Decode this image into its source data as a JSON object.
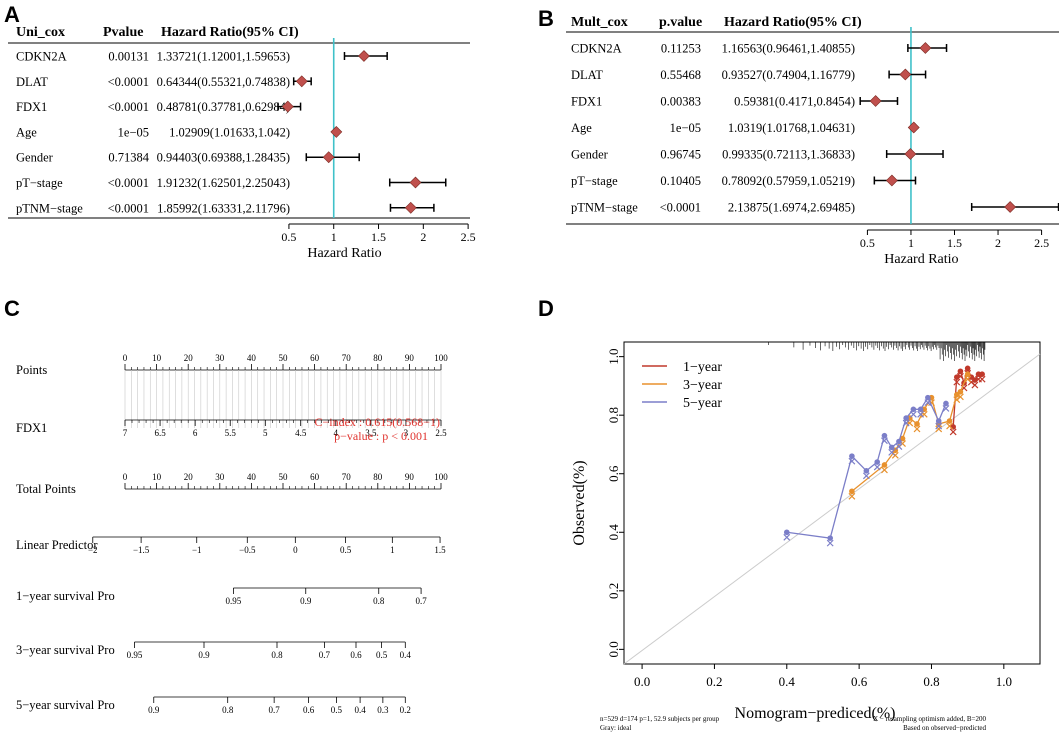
{
  "panel_letters": {
    "a": "A",
    "b": "B",
    "c": "C",
    "d": "D"
  },
  "colors": {
    "marker": "#c0504d",
    "ref_line": "#3fc1c9",
    "ci": "#000000",
    "one_year": "#c0392b",
    "three_year": "#e8912d",
    "five_year": "#7b7ec8",
    "ideal": "#cccccc"
  },
  "chart_data": [
    {
      "type": "forest",
      "headers": [
        "Uni_cox",
        "Pvalue",
        "Hazard Ratio(95% CI)"
      ],
      "rows": [
        {
          "label": "CDKN2A",
          "p": "0.00131",
          "hr_text": "1.33721(1.12001,1.59653)",
          "hr": 1.33721,
          "lo": 1.12001,
          "hi": 1.59653
        },
        {
          "label": "DLAT",
          "p": "<0.0001",
          "hr_text": "0.64344(0.55321,0.74838)",
          "hr": 0.64344,
          "lo": 0.55321,
          "hi": 0.74838
        },
        {
          "label": "FDX1",
          "p": "<0.0001",
          "hr_text": "0.48781(0.37781,0.62984)",
          "hr": 0.48781,
          "lo": 0.37781,
          "hi": 0.62984
        },
        {
          "label": "Age",
          "p": "1e−05",
          "hr_text": "1.02909(1.01633,1.042)",
          "hr": 1.02909,
          "lo": 1.01633,
          "hi": 1.042
        },
        {
          "label": "Gender",
          "p": "0.71384",
          "hr_text": "0.94403(0.69388,1.28435)",
          "hr": 0.94403,
          "lo": 0.69388,
          "hi": 1.28435
        },
        {
          "label": "pT−stage",
          "p": "<0.0001",
          "hr_text": "1.91232(1.62501,2.25043)",
          "hr": 1.91232,
          "lo": 1.62501,
          "hi": 2.25043
        },
        {
          "label": "pTNM−stage",
          "p": "<0.0001",
          "hr_text": "1.85992(1.63331,2.11796)",
          "hr": 1.85992,
          "lo": 1.63331,
          "hi": 2.11796
        }
      ],
      "ticks": [
        "0.5",
        "1",
        "1.5",
        "2",
        "2.5"
      ],
      "xlim": [
        0.3,
        2.8
      ],
      "xlabel": "Hazard Ratio"
    },
    {
      "type": "forest",
      "headers": [
        "Mult_cox",
        "p.value",
        "Hazard Ratio(95% CI)"
      ],
      "rows": [
        {
          "label": "CDKN2A",
          "p": "0.11253",
          "hr_text": "1.16563(0.96461,1.40855)",
          "hr": 1.16563,
          "lo": 0.96461,
          "hi": 1.40855
        },
        {
          "label": "DLAT",
          "p": "0.55468",
          "hr_text": "0.93527(0.74904,1.16779)",
          "hr": 0.93527,
          "lo": 0.74904,
          "hi": 1.16779
        },
        {
          "label": "FDX1",
          "p": "0.00383",
          "hr_text": "0.59381(0.4171,0.8454)",
          "hr": 0.59381,
          "lo": 0.4171,
          "hi": 0.8454
        },
        {
          "label": "Age",
          "p": "1e−05",
          "hr_text": "1.0319(1.01768,1.04631)",
          "hr": 1.0319,
          "lo": 1.01768,
          "hi": 1.04631
        },
        {
          "label": "Gender",
          "p": "0.96745",
          "hr_text": "0.99335(0.72113,1.36833)",
          "hr": 0.99335,
          "lo": 0.72113,
          "hi": 1.36833
        },
        {
          "label": "pT−stage",
          "p": "0.10405",
          "hr_text": "0.78092(0.57959,1.05219)",
          "hr": 0.78092,
          "lo": 0.57959,
          "hi": 1.05219
        },
        {
          "label": "pTNM−stage",
          "p": "<0.0001",
          "hr_text": "2.13875(1.6974,2.69485)",
          "hr": 2.13875,
          "lo": 1.6974,
          "hi": 2.69485
        }
      ],
      "ticks": [
        "0.5",
        "1",
        "1.5",
        "2",
        "2.5"
      ],
      "xlim": [
        0.3,
        2.7
      ],
      "xlabel": "Hazard Ratio"
    },
    {
      "type": "nomogram",
      "rows": [
        {
          "label": "Points",
          "ticks": [
            [
              "0",
              0
            ],
            [
              "10",
              10
            ],
            [
              "20",
              20
            ],
            [
              "30",
              30
            ],
            [
              "40",
              40
            ],
            [
              "50",
              50
            ],
            [
              "60",
              60
            ],
            [
              "70",
              70
            ],
            [
              "80",
              80
            ],
            [
              "90",
              90
            ],
            [
              "100",
              100
            ]
          ],
          "labels_above": true
        },
        {
          "label": "FDX1",
          "ticks": [
            [
              "7",
              0
            ],
            [
              "6.5",
              11.1
            ],
            [
              "6",
              22.2
            ],
            [
              "5.5",
              33.3
            ],
            [
              "5",
              44.4
            ],
            [
              "4.5",
              55.6
            ],
            [
              "4",
              66.7
            ],
            [
              "3.5",
              77.8
            ],
            [
              "3",
              88.9
            ],
            [
              "2.5",
              100
            ]
          ],
          "labels_above": false
        },
        {
          "label": "Total Points",
          "ticks": [
            [
              "0",
              0
            ],
            [
              "10",
              10
            ],
            [
              "20",
              20
            ],
            [
              "30",
              30
            ],
            [
              "40",
              40
            ],
            [
              "50",
              50
            ],
            [
              "60",
              60
            ],
            [
              "70",
              70
            ],
            [
              "80",
              80
            ],
            [
              "90",
              90
            ],
            [
              "100",
              100
            ]
          ],
          "labels_above": true
        },
        {
          "label": "Linear Predictor",
          "ticks": [
            [
              "−2",
              -10.2
            ],
            [
              "−1.5",
              5.1
            ],
            [
              "−1",
              22.7
            ],
            [
              "−0.5",
              38.7
            ],
            [
              "0",
              53.9
            ],
            [
              "0.5",
              69.8
            ],
            [
              "1",
              84.6
            ],
            [
              "1.5",
              99.7
            ]
          ],
          "labels_above": false
        },
        {
          "label": "1−year survival Pro",
          "ticks": [
            [
              "0.95",
              34.3
            ],
            [
              "0.9",
              57.2
            ],
            [
              "0.8",
              80.3
            ],
            [
              "0.7",
              93.7
            ]
          ],
          "labels_above": false
        },
        {
          "label": "3−year survival Pro",
          "ticks": [
            [
              "0.95",
              3.0
            ],
            [
              "0.9",
              25.0
            ],
            [
              "0.8",
              48.1
            ],
            [
              "0.7",
              63.1
            ],
            [
              "0.6",
              73.1
            ],
            [
              "0.5",
              81.2
            ],
            [
              "0.4",
              88.7
            ]
          ],
          "labels_above": false
        },
        {
          "label": "5−year survival Pro",
          "ticks": [
            [
              "0.9",
              9.1
            ],
            [
              "0.8",
              32.5
            ],
            [
              "0.7",
              47.2
            ],
            [
              "0.6",
              58.1
            ],
            [
              "0.5",
              66.9
            ],
            [
              "0.4",
              74.4
            ],
            [
              "0.3",
              81.6
            ],
            [
              "0.2",
              88.7
            ]
          ],
          "labels_above": false
        }
      ],
      "annotation_cindex": "C−index : 0.615(0.568−1)",
      "annotation_pvalue": "p−value : p < 0.001"
    },
    {
      "type": "line",
      "xlabel": "Nomogram−prediced(%)",
      "ylabel": "Observed(%)",
      "xlim": [
        -0.05,
        1.1
      ],
      "ylim": [
        -0.05,
        1.05
      ],
      "xticks": [
        "0.0",
        "0.2",
        "0.4",
        "0.6",
        "0.8",
        "1.0"
      ],
      "yticks": [
        "0.0",
        "0.2",
        "0.4",
        "0.6",
        "0.8",
        "1.0"
      ],
      "legend": [
        "1−year",
        "3−year",
        "5−year"
      ],
      "series": [
        {
          "name": "1−year",
          "x": [
            0.86,
            0.87,
            0.88,
            0.89,
            0.9,
            0.91,
            0.92,
            0.93,
            0.94
          ],
          "y": [
            0.76,
            0.93,
            0.95,
            0.91,
            0.96,
            0.93,
            0.92,
            0.94,
            0.94
          ]
        },
        {
          "name": "3−year",
          "x": [
            0.58,
            0.67,
            0.7,
            0.72,
            0.74,
            0.76,
            0.78,
            0.8,
            0.82,
            0.85,
            0.87,
            0.88,
            0.9
          ],
          "y": [
            0.54,
            0.63,
            0.68,
            0.72,
            0.79,
            0.77,
            0.82,
            0.86,
            0.77,
            0.78,
            0.87,
            0.88,
            0.94
          ]
        },
        {
          "name": "5−year",
          "x": [
            0.4,
            0.52,
            0.58,
            0.62,
            0.65,
            0.67,
            0.69,
            0.71,
            0.73,
            0.75,
            0.77,
            0.79,
            0.82,
            0.84
          ],
          "y": [
            0.4,
            0.38,
            0.66,
            0.61,
            0.64,
            0.73,
            0.69,
            0.71,
            0.79,
            0.82,
            0.82,
            0.86,
            0.78,
            0.84
          ]
        }
      ],
      "footnote_left_1": "n=529 d=174 p=1, 52.9 subjects per group",
      "footnote_left_2": "Gray: ideal",
      "footnote_right_1": "X − resampling optimism added, B=200",
      "footnote_right_2": "Based on observed−predicted"
    }
  ]
}
